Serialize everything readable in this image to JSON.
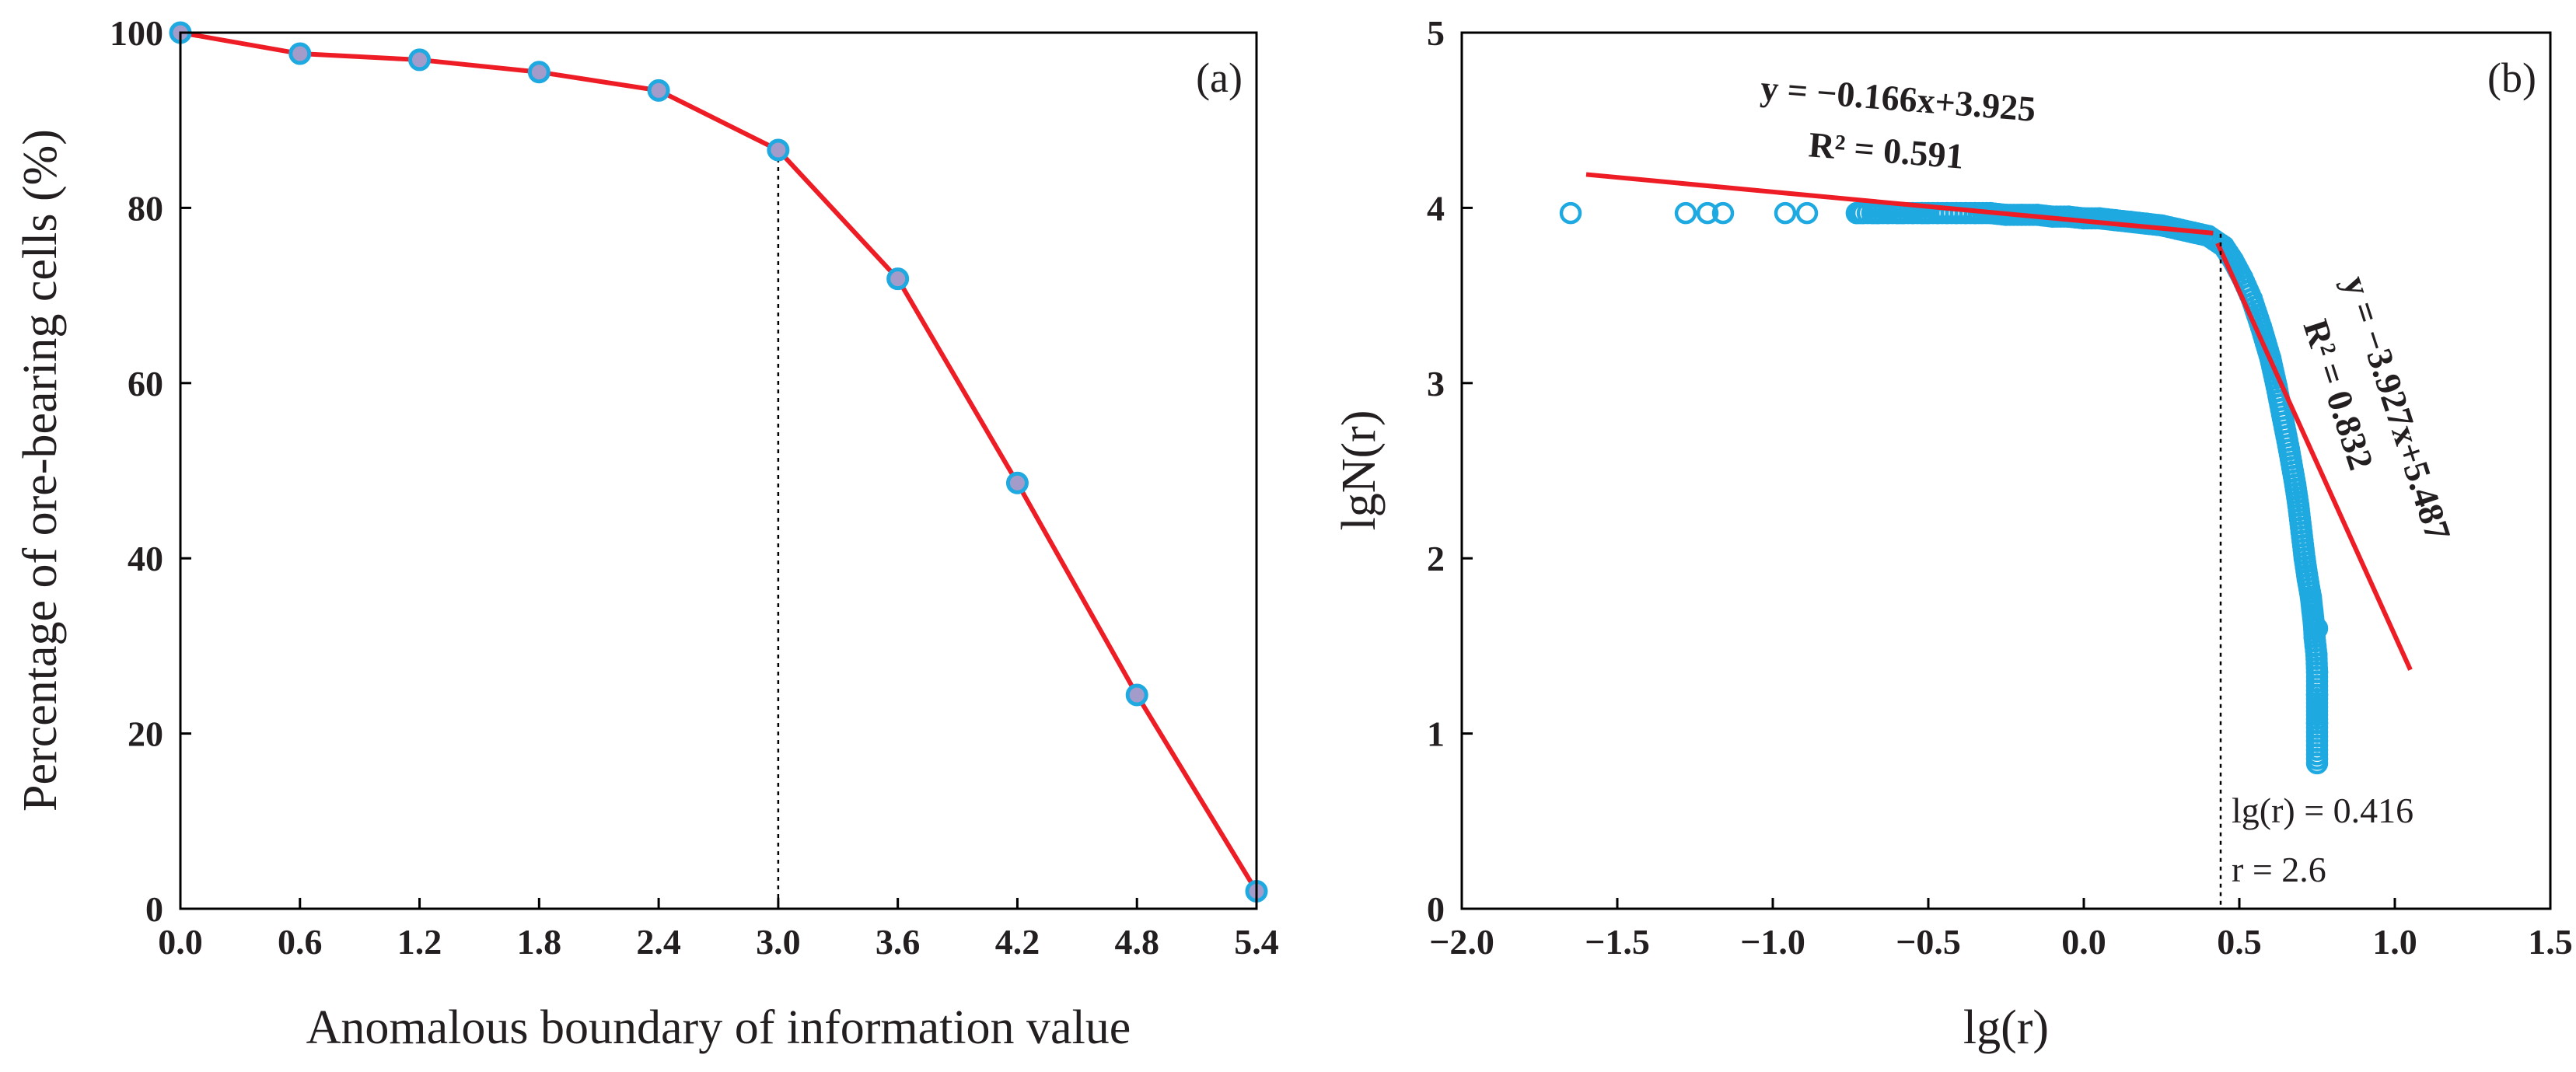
{
  "chart_data": [
    {
      "type": "line",
      "panel_label": "(a)",
      "xlabel": "Anomalous boundary of information value",
      "ylabel": "Percentage of ore-bearing cells (%)",
      "xlim": [
        0.0,
        5.4
      ],
      "ylim": [
        0,
        100
      ],
      "x_ticks": [
        "0.0",
        "0.6",
        "1.2",
        "1.8",
        "2.4",
        "3.0",
        "3.6",
        "4.2",
        "4.8",
        "5.4"
      ],
      "y_ticks": [
        "0",
        "20",
        "40",
        "60",
        "80",
        "100"
      ],
      "series": [
        {
          "name": "ore-bearing cells",
          "x": [
            0.0,
            0.6,
            1.2,
            1.8,
            2.4,
            3.0,
            3.6,
            4.2,
            4.8,
            5.4
          ],
          "y": [
            100,
            97.6,
            96.9,
            95.5,
            93.4,
            86.6,
            71.9,
            48.6,
            24.4,
            2.0
          ]
        }
      ],
      "vline_x": 3.0
    },
    {
      "type": "scatter",
      "panel_label": "(b)",
      "xlabel": "lg(r)",
      "ylabel": "lgN(r)",
      "xlim": [
        -2.0,
        1.5
      ],
      "ylim": [
        0,
        5
      ],
      "x_ticks": [
        "−2.0",
        "−1.5",
        "−1.0",
        "−0.5",
        "0.0",
        "0.5",
        "1.0",
        "1.5"
      ],
      "y_ticks": [
        "0",
        "1",
        "2",
        "3",
        "4",
        "5"
      ],
      "points": {
        "x": [
          -1.65,
          -1.28,
          -1.21,
          -1.16,
          -0.96,
          -0.89,
          -0.73,
          -0.71,
          -0.68,
          -0.66,
          -0.63,
          -0.6,
          -0.58,
          -0.55,
          -0.52,
          -0.5,
          -0.47,
          -0.44,
          -0.41,
          -0.38,
          -0.35,
          -0.3,
          -0.25,
          -0.2,
          -0.15,
          -0.1,
          -0.05,
          0.0,
          0.05,
          0.1,
          0.15,
          0.2,
          0.25,
          0.3,
          0.35,
          0.4,
          0.45,
          0.48,
          0.51,
          0.54,
          0.57,
          0.6,
          0.62,
          0.64,
          0.66,
          0.68,
          0.69,
          0.7,
          0.71,
          0.72,
          0.73,
          0.735,
          0.74,
          0.742,
          0.745,
          0.748,
          0.75,
          0.75,
          0.75,
          0.75,
          0.75
        ],
        "y": [
          3.97,
          3.97,
          3.97,
          3.97,
          3.97,
          3.97,
          3.97,
          3.97,
          3.97,
          3.97,
          3.97,
          3.97,
          3.97,
          3.97,
          3.97,
          3.97,
          3.97,
          3.97,
          3.97,
          3.97,
          3.97,
          3.97,
          3.96,
          3.96,
          3.96,
          3.95,
          3.95,
          3.94,
          3.94,
          3.93,
          3.92,
          3.91,
          3.9,
          3.88,
          3.86,
          3.84,
          3.78,
          3.7,
          3.6,
          3.48,
          3.32,
          3.14,
          2.98,
          2.8,
          2.62,
          2.42,
          2.3,
          2.15,
          2.0,
          1.88,
          1.78,
          1.7,
          1.62,
          1.55,
          1.5,
          1.45,
          1.35,
          1.22,
          1.06,
          0.83,
          1.6
        ]
      },
      "fits": [
        {
          "equation": "y = −0.166x+3.925",
          "r2": "0.591",
          "x": [
            -1.6,
            0.416
          ],
          "slope": -0.166,
          "intercept": 3.925
        },
        {
          "equation": "y = −3.927x+5.487",
          "r2": "0.832",
          "x": [
            0.43,
            1.05
          ],
          "slope": -3.927,
          "intercept": 5.487
        }
      ],
      "r2_prefix": "R² = ",
      "vline_x": 0.44,
      "annotations": [
        "lg(r) = 0.416",
        "r = 2.6"
      ]
    }
  ]
}
